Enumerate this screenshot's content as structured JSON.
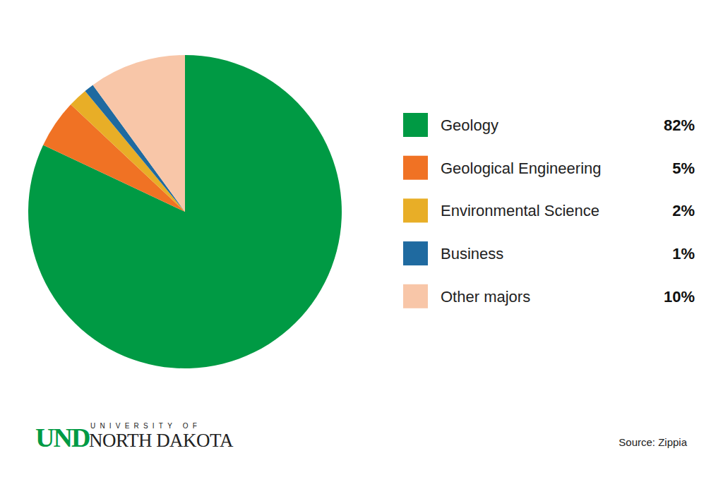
{
  "chart_data": {
    "type": "pie",
    "categories": [
      "Geology",
      "Geological Engineering",
      "Environmental Science",
      "Business",
      "Other majors"
    ],
    "values": [
      82,
      5,
      2,
      1,
      10
    ],
    "value_labels": [
      "82%",
      "5%",
      "2%",
      "1%",
      "10%"
    ],
    "colors": [
      "#009a44",
      "#f07224",
      "#e8ae27",
      "#1f6aa0",
      "#f8c6a8"
    ],
    "legend": "right",
    "annotations": [
      "UND",
      "UNIVERSITY OF",
      "NORTH DAKOTA",
      "Source: Zippia"
    ]
  }
}
